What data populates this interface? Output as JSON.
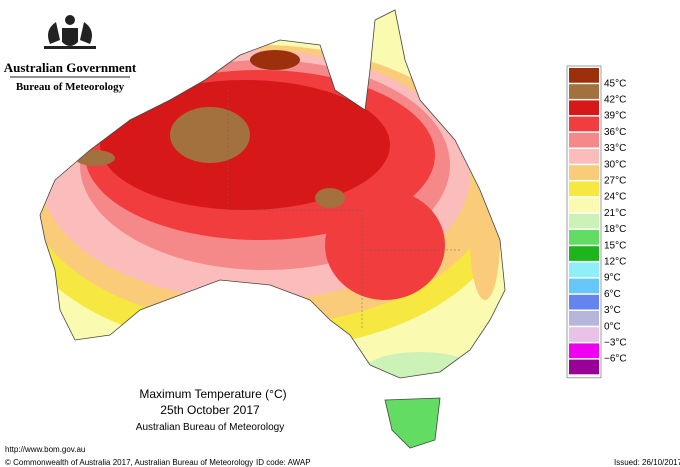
{
  "header": {
    "title": "Australian Government",
    "subtitle": "Bureau of Meteorology"
  },
  "caption": {
    "title": "Maximum Temperature (°C)",
    "date": "25th October 2017",
    "source": "Australian Bureau of Meteorology"
  },
  "footer": {
    "url": "http://www.bom.gov.au",
    "copyright": "© Commonwealth of Australia 2017, Australian Bureau of Meteorology",
    "id_code": "ID code: AWAP",
    "issued": "Issued: 26/10/2017"
  },
  "legend": {
    "labels": [
      "45°C",
      "42°C",
      "39°C",
      "36°C",
      "33°C",
      "30°C",
      "27°C",
      "24°C",
      "21°C",
      "18°C",
      "15°C",
      "12°C",
      "9°C",
      "6°C",
      "3°C",
      "0°C",
      "−3°C",
      "−6°C"
    ],
    "colors": [
      "#9c2f0c",
      "#a2713d",
      "#d71818",
      "#f13d3d",
      "#f5898a",
      "#fbbcbc",
      "#facb78",
      "#f6e840",
      "#fafab0",
      "#cdf2b8",
      "#62dc62",
      "#1db41d",
      "#8eeefa",
      "#66c8fa",
      "#6684f0",
      "#b6b6dc",
      "#e8c2e8",
      "#f000f0",
      "#980098"
    ]
  }
}
